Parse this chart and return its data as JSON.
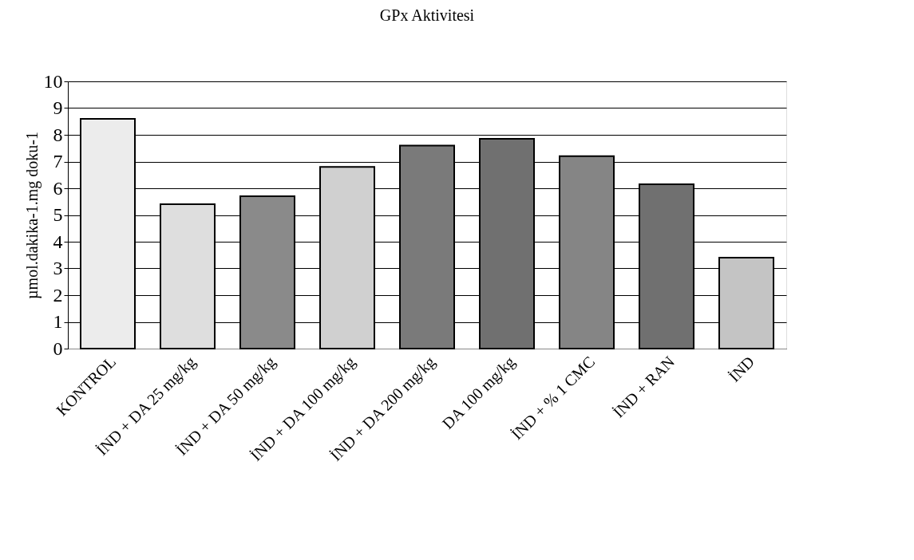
{
  "chart_data": {
    "type": "bar",
    "title": "GPx Aktivitesi",
    "ylabel": "µmol.dakika-1.mg doku-1",
    "categories": [
      "KONTROL",
      "İND + DA 25 mg/kg",
      "İND + DA 50 mg/kg",
      "İND + DA 100 mg/kg",
      "İND + DA 200 mg/kg",
      "DA 100 mg/kg",
      "İND + % 1  CMC",
      "İND + RAN",
      "İND"
    ],
    "values": [
      8.6,
      5.4,
      5.7,
      6.8,
      7.6,
      7.85,
      7.2,
      6.15,
      3.4
    ],
    "colors": [
      "#ececec",
      "#dedede",
      "#8a8a8a",
      "#d0d0d0",
      "#7a7a7a",
      "#707070",
      "#858585",
      "#707070",
      "#c4c4c4"
    ],
    "ylim": [
      0,
      10
    ],
    "yticks": [
      0,
      1,
      2,
      3,
      4,
      5,
      6,
      7,
      8,
      9,
      10
    ],
    "grid": "y"
  }
}
